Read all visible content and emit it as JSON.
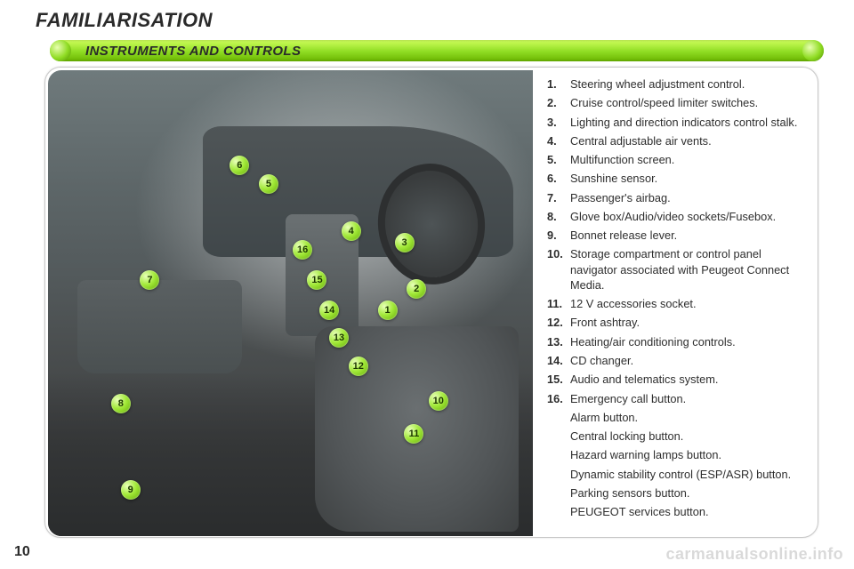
{
  "page": {
    "number": "10",
    "main_title": "FAMILIARISATION",
    "section_title": "INSTRUMENTS AND CONTROLS",
    "watermark": "carmanualsonline.info"
  },
  "palette": {
    "bar_gradient_top": "#cfff5c",
    "bar_gradient_mid": "#8fdc23",
    "bar_gradient_bot": "#6ab500",
    "marker_light": "#e9ffbb",
    "marker_mid": "#a3ea3a",
    "marker_dark": "#5fa800",
    "text": "#2e2e2e",
    "border": "#c8c8c8",
    "photo_bg_top": "#6f7a7c",
    "photo_bg_bot": "#363839"
  },
  "markers": [
    {
      "n": "1",
      "x": 70.0,
      "y": 51.5
    },
    {
      "n": "2",
      "x": 76.0,
      "y": 47.0
    },
    {
      "n": "3",
      "x": 73.5,
      "y": 37.0
    },
    {
      "n": "4",
      "x": 62.5,
      "y": 34.5
    },
    {
      "n": "5",
      "x": 45.5,
      "y": 24.5
    },
    {
      "n": "6",
      "x": 39.5,
      "y": 20.5
    },
    {
      "n": "7",
      "x": 21.0,
      "y": 45.0
    },
    {
      "n": "8",
      "x": 15.0,
      "y": 71.5
    },
    {
      "n": "9",
      "x": 17.0,
      "y": 90.0
    },
    {
      "n": "10",
      "x": 80.5,
      "y": 71.0
    },
    {
      "n": "11",
      "x": 75.5,
      "y": 78.0
    },
    {
      "n": "12",
      "x": 64.0,
      "y": 63.5
    },
    {
      "n": "13",
      "x": 60.0,
      "y": 57.5
    },
    {
      "n": "14",
      "x": 58.0,
      "y": 51.5
    },
    {
      "n": "15",
      "x": 55.5,
      "y": 45.0
    },
    {
      "n": "16",
      "x": 52.5,
      "y": 38.5
    }
  ],
  "items": [
    {
      "n": "1.",
      "t": "Steering wheel adjustment control."
    },
    {
      "n": "2.",
      "t": "Cruise control/speed limiter switches."
    },
    {
      "n": "3.",
      "t": "Lighting and direction indicators control stalk."
    },
    {
      "n": "4.",
      "t": "Central adjustable air vents."
    },
    {
      "n": "5.",
      "t": "Multifunction screen."
    },
    {
      "n": "6.",
      "t": "Sunshine sensor."
    },
    {
      "n": "7.",
      "t": "Passenger's airbag."
    },
    {
      "n": "8.",
      "t": "Glove box/Audio/video sockets/Fusebox."
    },
    {
      "n": "9.",
      "t": "Bonnet release lever."
    },
    {
      "n": "10.",
      "t": "Storage compartment or control panel navigator associated with Peugeot Connect Media."
    },
    {
      "n": "11.",
      "t": "12 V accessories socket."
    },
    {
      "n": "12.",
      "t": "Front ashtray."
    },
    {
      "n": "13.",
      "t": "Heating/air conditioning controls."
    },
    {
      "n": "14.",
      "t": "CD changer."
    },
    {
      "n": "15.",
      "t": "Audio and telematics system."
    },
    {
      "n": "16.",
      "t": "Emergency call button."
    }
  ],
  "subitems": [
    "Alarm button.",
    "Central locking button.",
    "Hazard warning lamps button.",
    "Dynamic stability control (ESP/ASR) button.",
    "Parking sensors button.",
    "PEUGEOT services button."
  ]
}
